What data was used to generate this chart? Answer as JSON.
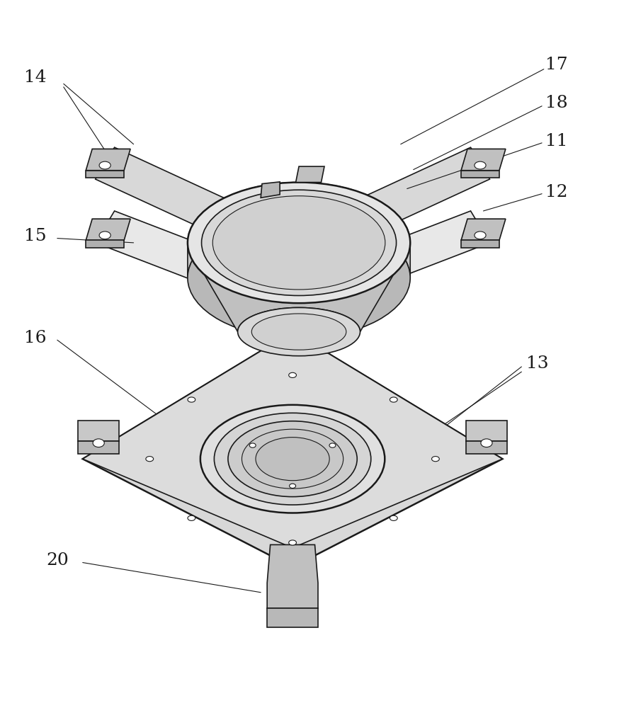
{
  "background_color": "#ffffff",
  "line_color": "#1a1a1a",
  "line_width": 1.2,
  "fig_width": 8.98,
  "fig_height": 10.0,
  "label_fontsize": 18
}
